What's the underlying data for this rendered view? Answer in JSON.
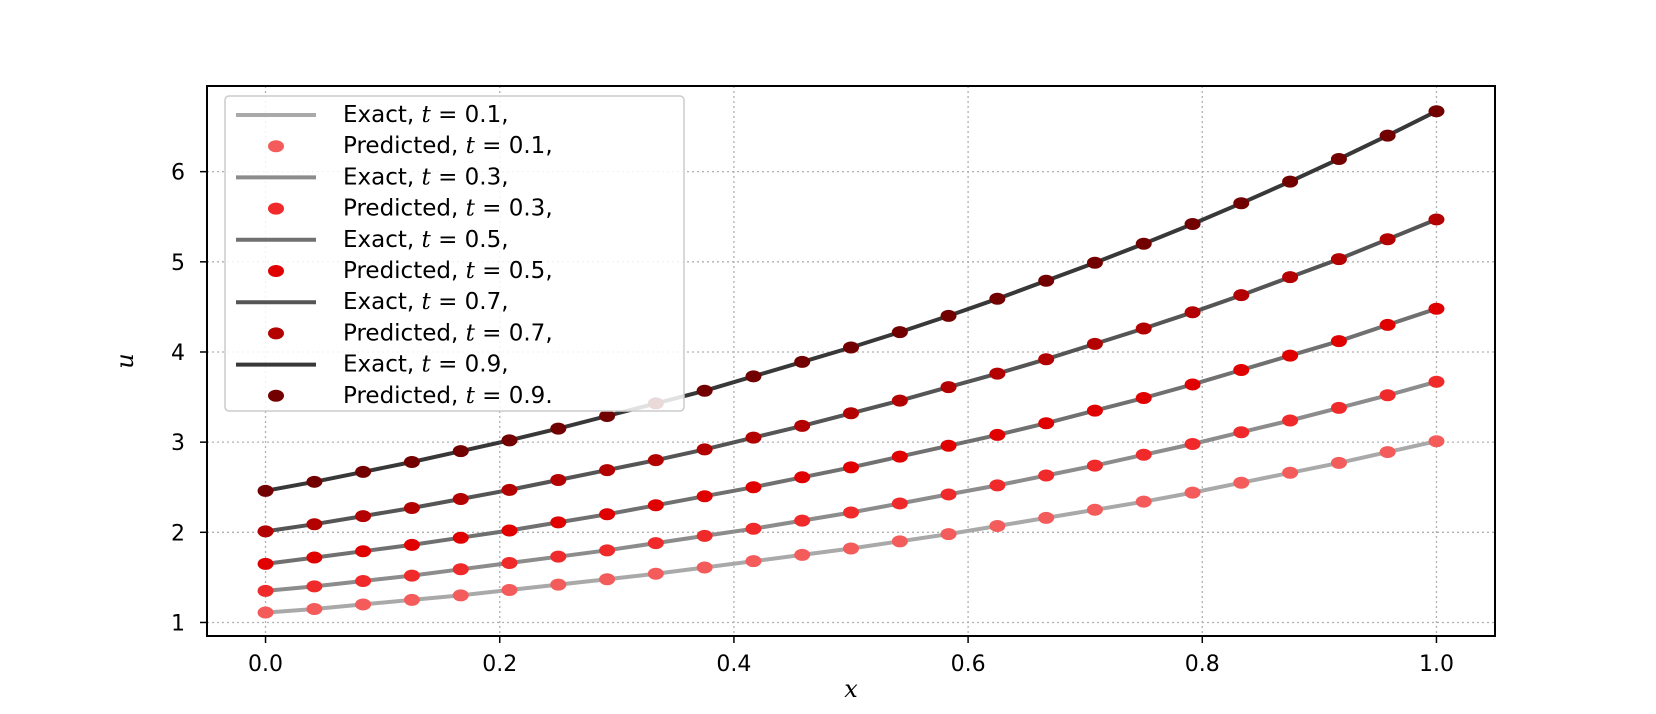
{
  "chart_data": {
    "type": "line",
    "xlabel": "x",
    "ylabel": "u",
    "xlim": [
      -0.05,
      1.05
    ],
    "ylim": [
      0.85,
      6.95
    ],
    "xticks": [
      0.0,
      0.2,
      0.4,
      0.6,
      0.8,
      1.0
    ],
    "xtick_labels": [
      "0.0",
      "0.2",
      "0.4",
      "0.6",
      "0.8",
      "1.0"
    ],
    "yticks": [
      1,
      2,
      3,
      4,
      5,
      6
    ],
    "ytick_labels": [
      "1",
      "2",
      "3",
      "4",
      "5",
      "6"
    ],
    "grid": true,
    "legend_position": "top-left",
    "x": [
      0.0,
      0.0417,
      0.0833,
      0.125,
      0.1667,
      0.2083,
      0.25,
      0.2917,
      0.3333,
      0.375,
      0.4167,
      0.4583,
      0.5,
      0.5417,
      0.5833,
      0.625,
      0.6667,
      0.7083,
      0.75,
      0.7917,
      0.8333,
      0.875,
      0.9167,
      0.9583,
      1.0
    ],
    "series": [
      {
        "name": "Exact, t = 0.1,",
        "kind": "line",
        "color": "#a9a9a9",
        "values": [
          1.11,
          1.15,
          1.2,
          1.25,
          1.3,
          1.36,
          1.42,
          1.48,
          1.54,
          1.61,
          1.68,
          1.75,
          1.82,
          1.9,
          1.98,
          2.07,
          2.16,
          2.25,
          2.34,
          2.44,
          2.55,
          2.66,
          2.77,
          2.89,
          3.01
        ]
      },
      {
        "name": "Predicted, t = 0.1,",
        "kind": "points",
        "color": "#f45b5b",
        "values": [
          1.11,
          1.15,
          1.2,
          1.25,
          1.3,
          1.36,
          1.42,
          1.48,
          1.54,
          1.61,
          1.68,
          1.75,
          1.82,
          1.9,
          1.98,
          2.07,
          2.16,
          2.25,
          2.34,
          2.44,
          2.55,
          2.66,
          2.77,
          2.89,
          3.01
        ]
      },
      {
        "name": "Exact, t = 0.3,",
        "kind": "line",
        "color": "#8c8c8c",
        "values": [
          1.35,
          1.4,
          1.46,
          1.52,
          1.59,
          1.66,
          1.73,
          1.8,
          1.88,
          1.96,
          2.04,
          2.13,
          2.22,
          2.32,
          2.42,
          2.52,
          2.63,
          2.74,
          2.86,
          2.98,
          3.11,
          3.24,
          3.38,
          3.52,
          3.67
        ]
      },
      {
        "name": "Predicted, t = 0.3,",
        "kind": "points",
        "color": "#f02a2a",
        "values": [
          1.35,
          1.4,
          1.46,
          1.52,
          1.59,
          1.66,
          1.73,
          1.8,
          1.88,
          1.96,
          2.04,
          2.13,
          2.22,
          2.32,
          2.42,
          2.52,
          2.63,
          2.74,
          2.86,
          2.98,
          3.11,
          3.24,
          3.38,
          3.52,
          3.67
        ]
      },
      {
        "name": "Exact, t = 0.5,",
        "kind": "line",
        "color": "#707070",
        "values": [
          1.65,
          1.72,
          1.79,
          1.86,
          1.94,
          2.02,
          2.11,
          2.2,
          2.3,
          2.4,
          2.5,
          2.61,
          2.72,
          2.84,
          2.96,
          3.08,
          3.21,
          3.35,
          3.49,
          3.64,
          3.8,
          3.96,
          4.12,
          4.3,
          4.48
        ]
      },
      {
        "name": "Predicted, t = 0.5,",
        "kind": "points",
        "color": "#e00000",
        "values": [
          1.65,
          1.72,
          1.79,
          1.86,
          1.94,
          2.02,
          2.11,
          2.2,
          2.3,
          2.4,
          2.5,
          2.61,
          2.72,
          2.84,
          2.96,
          3.08,
          3.21,
          3.35,
          3.49,
          3.64,
          3.8,
          3.96,
          4.12,
          4.3,
          4.48
        ]
      },
      {
        "name": "Exact, t = 0.7,",
        "kind": "line",
        "color": "#555555",
        "values": [
          2.01,
          2.09,
          2.18,
          2.27,
          2.37,
          2.47,
          2.58,
          2.69,
          2.8,
          2.92,
          3.05,
          3.18,
          3.32,
          3.46,
          3.61,
          3.76,
          3.92,
          4.09,
          4.26,
          4.44,
          4.63,
          4.83,
          5.03,
          5.25,
          5.47
        ]
      },
      {
        "name": "Predicted, t = 0.7,",
        "kind": "points",
        "color": "#b30000",
        "values": [
          2.01,
          2.09,
          2.18,
          2.27,
          2.37,
          2.47,
          2.58,
          2.69,
          2.8,
          2.92,
          3.05,
          3.18,
          3.32,
          3.46,
          3.61,
          3.76,
          3.92,
          4.09,
          4.26,
          4.44,
          4.63,
          4.83,
          5.03,
          5.25,
          5.47
        ]
      },
      {
        "name": "Exact, t = 0.9,",
        "kind": "line",
        "color": "#383838",
        "values": [
          2.46,
          2.56,
          2.67,
          2.78,
          2.9,
          3.02,
          3.15,
          3.29,
          3.43,
          3.57,
          3.73,
          3.89,
          4.05,
          4.22,
          4.4,
          4.59,
          4.79,
          4.99,
          5.2,
          5.42,
          5.65,
          5.89,
          6.14,
          6.4,
          6.67
        ]
      },
      {
        "name": "Predicted, t = 0.9,",
        "kind": "points",
        "color": "#730000",
        "values": [
          2.46,
          2.56,
          2.67,
          2.78,
          2.9,
          3.02,
          3.15,
          3.29,
          3.43,
          3.57,
          3.73,
          3.89,
          4.05,
          4.22,
          4.4,
          4.59,
          4.79,
          4.99,
          5.2,
          5.42,
          5.65,
          5.89,
          6.14,
          6.4,
          6.67
        ]
      }
    ],
    "legend": [
      {
        "prefix": "Exact, ",
        "var": "t",
        "suffix": " = 0.1,"
      },
      {
        "prefix": "Predicted, ",
        "var": "t",
        "suffix": " = 0.1,"
      },
      {
        "prefix": "Exact, ",
        "var": "t",
        "suffix": " = 0.3,"
      },
      {
        "prefix": "Predicted, ",
        "var": "t",
        "suffix": " = 0.3,"
      },
      {
        "prefix": "Exact, ",
        "var": "t",
        "suffix": " = 0.5,"
      },
      {
        "prefix": "Predicted, ",
        "var": "t",
        "suffix": " = 0.5,"
      },
      {
        "prefix": "Exact, ",
        "var": "t",
        "suffix": " = 0.7,"
      },
      {
        "prefix": "Predicted, ",
        "var": "t",
        "suffix": " = 0.7,"
      },
      {
        "prefix": "Exact, ",
        "var": "t",
        "suffix": " = 0.9,"
      },
      {
        "prefix": "Predicted, ",
        "var": "t",
        "suffix": " = 0.9."
      }
    ]
  }
}
